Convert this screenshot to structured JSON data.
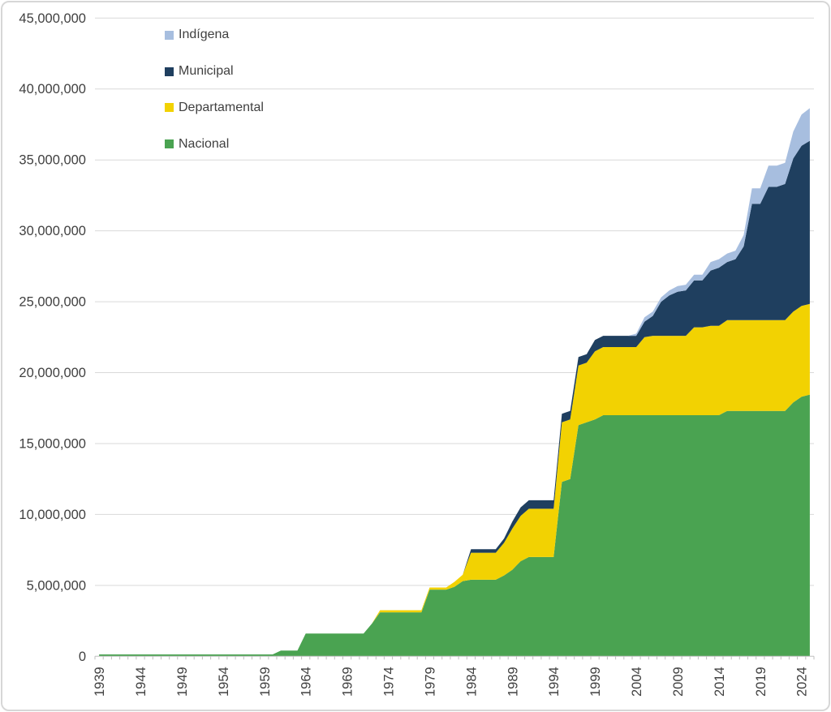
{
  "chart_data": {
    "type": "area",
    "stacked": true,
    "title": "",
    "xlabel": "",
    "ylabel": "",
    "grid": true,
    "legend_position": "top-left",
    "legend_order_top_to_bottom": [
      "Indígena",
      "Municipal",
      "Departamental",
      "Nacional"
    ],
    "ylim": [
      0,
      45000000
    ],
    "ytick_step": 5000000,
    "ytick_labels": [
      "0",
      "5,000,000",
      "10,000,000",
      "15,000,000",
      "20,000,000",
      "25,000,000",
      "30,000,000",
      "35,000,000",
      "40,000,000",
      "45,000,000"
    ],
    "xtick_labels": [
      "1939",
      "1944",
      "1949",
      "1954",
      "1959",
      "1964",
      "1969",
      "1974",
      "1979",
      "1984",
      "1989",
      "1994",
      "1999",
      "2004",
      "2009",
      "2014",
      "2019",
      "2024"
    ],
    "x_years": [
      1939,
      1940,
      1941,
      1942,
      1943,
      1944,
      1945,
      1946,
      1947,
      1948,
      1949,
      1950,
      1951,
      1952,
      1953,
      1954,
      1955,
      1956,
      1957,
      1958,
      1959,
      1960,
      1961,
      1962,
      1963,
      1964,
      1965,
      1966,
      1967,
      1968,
      1969,
      1970,
      1971,
      1972,
      1973,
      1974,
      1975,
      1976,
      1977,
      1978,
      1979,
      1980,
      1981,
      1982,
      1983,
      1984,
      1985,
      1986,
      1987,
      1988,
      1989,
      1990,
      1991,
      1992,
      1993,
      1994,
      1995,
      1996,
      1997,
      1998,
      1999,
      2000,
      2001,
      2002,
      2003,
      2004,
      2005,
      2006,
      2007,
      2008,
      2009,
      2010,
      2011,
      2012,
      2013,
      2014,
      2015,
      2016,
      2017,
      2018,
      2019,
      2020,
      2021,
      2022,
      2023,
      2024,
      2025
    ],
    "series": [
      {
        "name": "Nacional",
        "color": "#4AA351",
        "values": [
          130000,
          130000,
          130000,
          130000,
          130000,
          130000,
          130000,
          130000,
          130000,
          130000,
          130000,
          130000,
          130000,
          130000,
          130000,
          130000,
          130000,
          130000,
          130000,
          130000,
          130000,
          130000,
          400000,
          400000,
          400000,
          1600000,
          1600000,
          1600000,
          1600000,
          1600000,
          1600000,
          1600000,
          1600000,
          2300000,
          3100000,
          3100000,
          3100000,
          3100000,
          3100000,
          3100000,
          4700000,
          4700000,
          4700000,
          4900000,
          5300000,
          5400000,
          5400000,
          5400000,
          5400000,
          5700000,
          6100000,
          6700000,
          7000000,
          7000000,
          7000000,
          7000000,
          12300000,
          12500000,
          16300000,
          16500000,
          16700000,
          17000000,
          17000000,
          17000000,
          17000000,
          17000000,
          17000000,
          17000000,
          17000000,
          17000000,
          17000000,
          17000000,
          17000000,
          17000000,
          17000000,
          17000000,
          17300000,
          17300000,
          17300000,
          17300000,
          17300000,
          17300000,
          17300000,
          17300000,
          17900000,
          18300000,
          18450000
        ]
      },
      {
        "name": "Departamental",
        "color": "#F2D202",
        "values": [
          0,
          0,
          0,
          0,
          0,
          0,
          0,
          0,
          0,
          0,
          0,
          0,
          0,
          0,
          0,
          0,
          0,
          0,
          0,
          0,
          0,
          0,
          0,
          0,
          0,
          0,
          0,
          0,
          0,
          0,
          0,
          0,
          0,
          0,
          150000,
          150000,
          150000,
          150000,
          150000,
          150000,
          150000,
          150000,
          150000,
          350000,
          450000,
          1900000,
          1900000,
          1900000,
          1900000,
          2300000,
          2900000,
          3200000,
          3400000,
          3400000,
          3400000,
          3400000,
          4200000,
          4200000,
          4200000,
          4200000,
          4800000,
          4800000,
          4800000,
          4800000,
          4800000,
          4800000,
          5500000,
          5600000,
          5600000,
          5600000,
          5600000,
          5600000,
          6200000,
          6200000,
          6300000,
          6300000,
          6400000,
          6400000,
          6400000,
          6400000,
          6400000,
          6400000,
          6400000,
          6400000,
          6400000,
          6400000,
          6400000
        ]
      },
      {
        "name": "Municipal",
        "color": "#1F3F5F",
        "values": [
          0,
          0,
          0,
          0,
          0,
          0,
          0,
          0,
          0,
          0,
          0,
          0,
          0,
          0,
          0,
          0,
          0,
          0,
          0,
          0,
          0,
          0,
          0,
          0,
          0,
          0,
          0,
          0,
          0,
          0,
          0,
          0,
          0,
          0,
          0,
          0,
          0,
          0,
          0,
          0,
          0,
          0,
          0,
          0,
          0,
          250000,
          250000,
          250000,
          250000,
          300000,
          500000,
          600000,
          600000,
          600000,
          600000,
          600000,
          600000,
          600000,
          600000,
          600000,
          800000,
          800000,
          800000,
          800000,
          800000,
          800000,
          1100000,
          1400000,
          2400000,
          2850000,
          3100000,
          3200000,
          3300000,
          3300000,
          3900000,
          4100000,
          4100000,
          4300000,
          5200000,
          8200000,
          8200000,
          9400000,
          9400000,
          9600000,
          10800000,
          11300000,
          11500000
        ]
      },
      {
        "name": "Indígena",
        "color": "#A7BEDF",
        "values": [
          0,
          0,
          0,
          0,
          0,
          0,
          0,
          0,
          0,
          0,
          0,
          0,
          0,
          0,
          0,
          0,
          0,
          0,
          0,
          0,
          0,
          0,
          0,
          0,
          0,
          0,
          0,
          0,
          0,
          0,
          0,
          0,
          0,
          0,
          0,
          0,
          0,
          0,
          0,
          0,
          0,
          0,
          0,
          0,
          0,
          0,
          0,
          0,
          0,
          0,
          0,
          0,
          0,
          0,
          0,
          0,
          0,
          0,
          0,
          0,
          0,
          0,
          0,
          0,
          0,
          150000,
          300000,
          300000,
          300000,
          350000,
          400000,
          400000,
          400000,
          400000,
          600000,
          600000,
          600000,
          600000,
          800000,
          1100000,
          1100000,
          1500000,
          1500000,
          1500000,
          1900000,
          2200000,
          2300000
        ]
      }
    ]
  },
  "colors": {
    "background": "#FFFFFF",
    "grid": "#D9D9D9",
    "axis": "#BFBFBF",
    "tick": "#BFBFBF",
    "label": "#404040",
    "frame": "#D7D7D7"
  }
}
